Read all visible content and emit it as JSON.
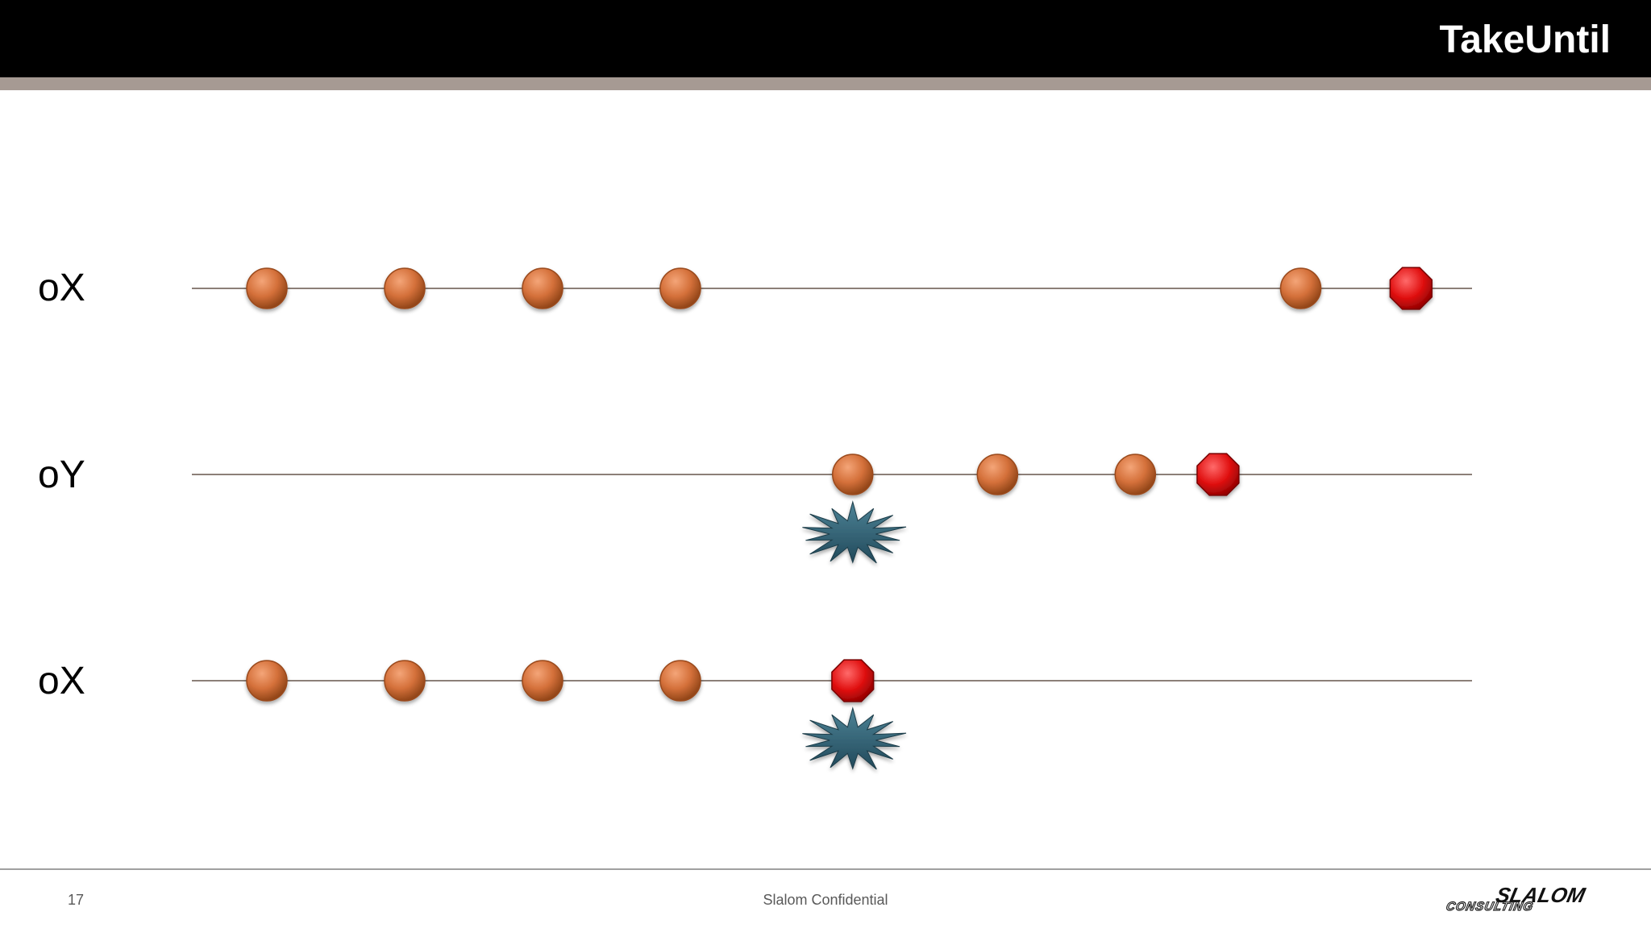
{
  "header": {
    "title": "TakeUntil"
  },
  "footer": {
    "page_number": "17",
    "confidential": "Slalom Confidential",
    "logo_line1": "SLALOM",
    "logo_line2": "CONSULTING"
  },
  "colors": {
    "header_bg": "#000000",
    "header_strip": "#a69a93",
    "marble": "#d4703a",
    "completion": "#e01010",
    "trigger": "#2f5f70",
    "timeline": "#8c7f78"
  },
  "streams": [
    {
      "label": "oX",
      "events": [
        {
          "kind": "value",
          "t": 1
        },
        {
          "kind": "value",
          "t": 2
        },
        {
          "kind": "value",
          "t": 3
        },
        {
          "kind": "value",
          "t": 4
        },
        {
          "kind": "value",
          "t": 8.5
        },
        {
          "kind": "complete",
          "t": 9.3
        }
      ]
    },
    {
      "label": "oY",
      "events": [
        {
          "kind": "value",
          "t": 5.25
        },
        {
          "kind": "trigger",
          "t": 5.25
        },
        {
          "kind": "value",
          "t": 6.3
        },
        {
          "kind": "value",
          "t": 7.3
        },
        {
          "kind": "complete",
          "t": 7.9
        }
      ]
    },
    {
      "label": "oX",
      "events": [
        {
          "kind": "value",
          "t": 1
        },
        {
          "kind": "value",
          "t": 2
        },
        {
          "kind": "value",
          "t": 3
        },
        {
          "kind": "value",
          "t": 4
        },
        {
          "kind": "complete",
          "t": 5.25
        },
        {
          "kind": "trigger",
          "t": 5.25
        }
      ]
    }
  ]
}
